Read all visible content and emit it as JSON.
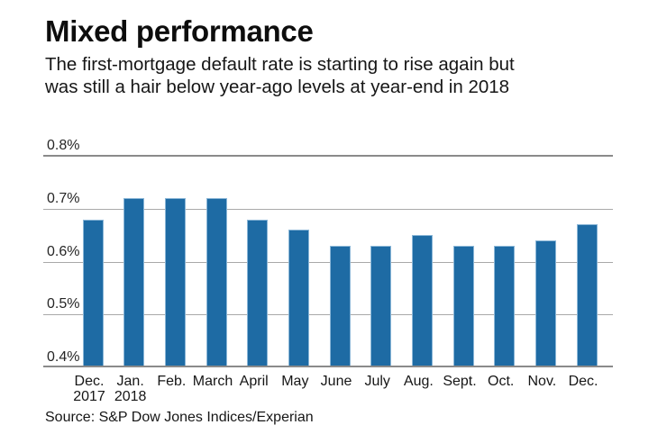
{
  "header": {
    "title": "Mixed performance",
    "subtitle_line1": "The first-mortgage default rate is starting to rise again but",
    "subtitle_line2": "was still a hair below year-ago levels at year-end in 2018"
  },
  "chart_data": {
    "type": "bar",
    "title": "Mixed performance",
    "subtitle": "The first-mortgage default rate is starting to rise again but was still a hair below year-ago levels at year-end in 2018",
    "series_name": "First-mortgage default rate (%)",
    "categories": [
      "Dec. 2017",
      "Jan. 2018",
      "Feb.",
      "March",
      "April",
      "May",
      "June",
      "July",
      "Aug.",
      "Sept.",
      "Oct.",
      "Nov.",
      "Dec."
    ],
    "category_labels": [
      {
        "line1": "Dec.",
        "line2": "2017"
      },
      {
        "line1": "Jan.",
        "line2": "2018"
      },
      {
        "line1": "Feb.",
        "line2": ""
      },
      {
        "line1": "March",
        "line2": ""
      },
      {
        "line1": "April",
        "line2": ""
      },
      {
        "line1": "May",
        "line2": ""
      },
      {
        "line1": "June",
        "line2": ""
      },
      {
        "line1": "July",
        "line2": ""
      },
      {
        "line1": "Aug.",
        "line2": ""
      },
      {
        "line1": "Sept.",
        "line2": ""
      },
      {
        "line1": "Oct.",
        "line2": ""
      },
      {
        "line1": "Nov.",
        "line2": ""
      },
      {
        "line1": "Dec.",
        "line2": ""
      }
    ],
    "values": [
      0.68,
      0.72,
      0.72,
      0.72,
      0.68,
      0.66,
      0.63,
      0.63,
      0.65,
      0.63,
      0.63,
      0.64,
      0.67
    ],
    "yticks": [
      "0.8%",
      "0.7%",
      "0.6%",
      "0.5%",
      "0.4%"
    ],
    "ylim": [
      0.4,
      0.8
    ],
    "grid": true,
    "legend": false,
    "bar_color": "#1e6ba4",
    "gridline_color": "#a9a9a9",
    "axis_color": "#8a8a8a"
  },
  "footer": {
    "source": "Source: S&P Dow Jones Indices/Experian"
  }
}
